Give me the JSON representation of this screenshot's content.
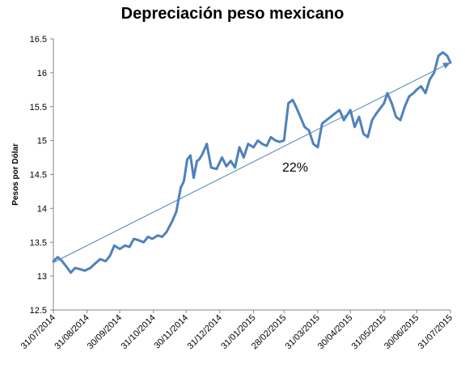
{
  "chart_data": {
    "type": "line",
    "title": "Depreciación peso mexicano",
    "xlabel": "",
    "ylabel": "Pesos por Dólar",
    "ylim": [
      12.5,
      16.5
    ],
    "yticks": [
      "12.5",
      "13",
      "13.5",
      "14",
      "14.5",
      "15",
      "15.5",
      "16",
      "16.5"
    ],
    "xticks": [
      "31/07/2014",
      "31/08/2014",
      "30/09/2014",
      "31/10/2014",
      "30/11/2014",
      "31/12/2014",
      "31/01/2015",
      "28/02/2015",
      "31/03/2015",
      "30/04/2015",
      "31/05/2015",
      "30/06/2015",
      "31/07/2015"
    ],
    "grid": false,
    "legend": "none",
    "annotation": "22%",
    "series": [
      {
        "color": "#4f81bd",
        "x": [
          "2014-07-31",
          "2014-08-04",
          "2014-08-08",
          "2014-08-12",
          "2014-08-16",
          "2014-08-20",
          "2014-08-25",
          "2014-08-29",
          "2014-09-03",
          "2014-09-07",
          "2014-09-12",
          "2014-09-17",
          "2014-09-21",
          "2014-09-25",
          "2014-09-30",
          "2014-10-05",
          "2014-10-09",
          "2014-10-13",
          "2014-10-17",
          "2014-10-22",
          "2014-10-26",
          "2014-10-30",
          "2014-11-04",
          "2014-11-08",
          "2014-11-12",
          "2014-11-17",
          "2014-11-21",
          "2014-11-25",
          "2014-11-28",
          "2014-12-01",
          "2014-12-04",
          "2014-12-07",
          "2014-12-10",
          "2014-12-12",
          "2014-12-15",
          "2014-12-19",
          "2014-12-23",
          "2014-12-28",
          "2015-01-02",
          "2015-01-06",
          "2015-01-10",
          "2015-01-14",
          "2015-01-18",
          "2015-01-22",
          "2015-01-26",
          "2015-01-31",
          "2015-02-04",
          "2015-02-08",
          "2015-02-12",
          "2015-02-16",
          "2015-02-20",
          "2015-02-24",
          "2015-02-28",
          "2015-03-04",
          "2015-03-08",
          "2015-03-11",
          "2015-03-15",
          "2015-03-19",
          "2015-03-23",
          "2015-03-27",
          "2015-03-31",
          "2015-04-04",
          "2015-04-08",
          "2015-04-12",
          "2015-04-16",
          "2015-04-20",
          "2015-04-24",
          "2015-04-30",
          "2015-05-04",
          "2015-05-08",
          "2015-05-12",
          "2015-05-16",
          "2015-05-20",
          "2015-05-24",
          "2015-05-31",
          "2015-06-03",
          "2015-06-07",
          "2015-06-11",
          "2015-06-15",
          "2015-06-19",
          "2015-06-23",
          "2015-06-27",
          "2015-06-30",
          "2015-07-04",
          "2015-07-08",
          "2015-07-12",
          "2015-07-16",
          "2015-07-20",
          "2015-07-24",
          "2015-07-28",
          "2015-07-31"
        ],
        "values": [
          13.22,
          13.28,
          13.22,
          13.14,
          13.05,
          13.12,
          13.1,
          13.08,
          13.12,
          13.18,
          13.25,
          13.22,
          13.3,
          13.45,
          13.4,
          13.45,
          13.43,
          13.55,
          13.53,
          13.5,
          13.58,
          13.55,
          13.6,
          13.58,
          13.65,
          13.8,
          13.95,
          14.3,
          14.4,
          14.72,
          14.78,
          14.45,
          14.7,
          14.72,
          14.8,
          14.95,
          14.6,
          14.58,
          14.75,
          14.62,
          14.7,
          14.6,
          14.9,
          14.75,
          14.95,
          14.9,
          15.0,
          14.95,
          14.92,
          15.05,
          15.0,
          14.98,
          15.0,
          15.55,
          15.6,
          15.5,
          15.35,
          15.2,
          15.15,
          14.95,
          14.9,
          15.25,
          15.3,
          15.35,
          15.4,
          15.45,
          15.3,
          15.45,
          15.2,
          15.35,
          15.1,
          15.05,
          15.3,
          15.4,
          15.55,
          15.7,
          15.55,
          15.35,
          15.3,
          15.5,
          15.65,
          15.7,
          15.75,
          15.8,
          15.7,
          15.9,
          16.0,
          16.25,
          16.3,
          16.25,
          16.15
        ]
      }
    ],
    "trendline": {
      "x": [
        "2014-07-31",
        "2015-07-31"
      ],
      "values": [
        13.2,
        16.15
      ]
    }
  }
}
